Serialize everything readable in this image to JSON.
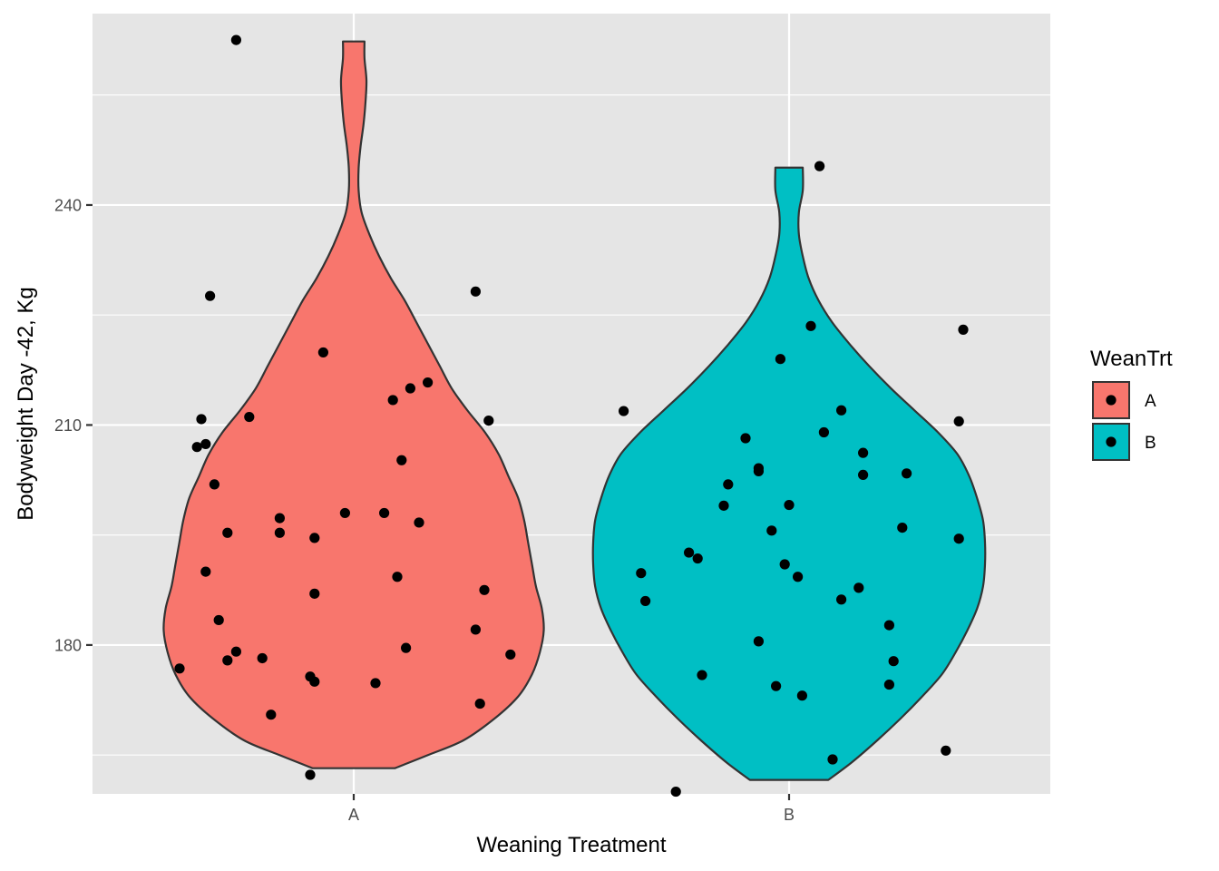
{
  "chart_data": {
    "type": "violin",
    "xlabel": "Weaning Treatment",
    "ylabel": "Bodyweight Day -42, Kg",
    "categories": [
      "A",
      "B"
    ],
    "ylim": [
      159.7,
      266.1
    ],
    "yticks": [
      180,
      210,
      240
    ],
    "grid": true,
    "legend": {
      "title": "WeanTrt",
      "position": "right",
      "entries": [
        {
          "label": "A",
          "color": "#F8766D"
        },
        {
          "label": "B",
          "color": "#00BFC4"
        }
      ]
    },
    "colors": {
      "A": "#F8766D",
      "B": "#00BFC4",
      "panel": "#E5E5E5",
      "grid": "#FFFFFF",
      "outline": "#333333",
      "point": "#000000"
    },
    "violins": [
      {
        "category": "A",
        "min": 163.2,
        "max": 262.3,
        "profile": [
          [
            163.2,
            0.21
          ],
          [
            165,
            0.38
          ],
          [
            167,
            0.56
          ],
          [
            170,
            0.72
          ],
          [
            173,
            0.84
          ],
          [
            176,
            0.91
          ],
          [
            179,
            0.95
          ],
          [
            182,
            0.97
          ],
          [
            185,
            0.96
          ],
          [
            188,
            0.93
          ],
          [
            191,
            0.91
          ],
          [
            194,
            0.89
          ],
          [
            197,
            0.87
          ],
          [
            200,
            0.84
          ],
          [
            203,
            0.79
          ],
          [
            206,
            0.74
          ],
          [
            209,
            0.67
          ],
          [
            212,
            0.58
          ],
          [
            215,
            0.5
          ],
          [
            218,
            0.44
          ],
          [
            221,
            0.38
          ],
          [
            224,
            0.32
          ],
          [
            227,
            0.26
          ],
          [
            230,
            0.19
          ],
          [
            233,
            0.13
          ],
          [
            236,
            0.08
          ],
          [
            239,
            0.04
          ],
          [
            242,
            0.025
          ],
          [
            245,
            0.025
          ],
          [
            248,
            0.035
          ],
          [
            251,
            0.05
          ],
          [
            254,
            0.06
          ],
          [
            257,
            0.065
          ],
          [
            260,
            0.055
          ],
          [
            262.3,
            0.055
          ]
        ]
      },
      {
        "category": "B",
        "min": 161.6,
        "max": 245.1,
        "profile": [
          [
            161.6,
            0.2
          ],
          [
            164,
            0.32
          ],
          [
            167,
            0.45
          ],
          [
            170,
            0.57
          ],
          [
            173,
            0.68
          ],
          [
            176,
            0.78
          ],
          [
            179,
            0.85
          ],
          [
            182,
            0.91
          ],
          [
            185,
            0.96
          ],
          [
            188,
            0.99
          ],
          [
            191,
            1.0
          ],
          [
            194,
            1.0
          ],
          [
            197,
            0.99
          ],
          [
            200,
            0.96
          ],
          [
            203,
            0.92
          ],
          [
            206,
            0.86
          ],
          [
            209,
            0.76
          ],
          [
            212,
            0.64
          ],
          [
            215,
            0.52
          ],
          [
            218,
            0.41
          ],
          [
            221,
            0.31
          ],
          [
            224,
            0.22
          ],
          [
            227,
            0.15
          ],
          [
            230,
            0.1
          ],
          [
            233,
            0.07
          ],
          [
            236,
            0.05
          ],
          [
            239,
            0.05
          ],
          [
            242,
            0.07
          ],
          [
            245.1,
            0.07
          ]
        ]
      }
    ],
    "points": {
      "A": [
        [
          -0.4,
          176.8
        ],
        [
          -0.27,
          262.5
        ],
        [
          -0.34,
          190.0
        ],
        [
          -0.36,
          207.0
        ],
        [
          -0.35,
          210.8
        ],
        [
          -0.34,
          207.4
        ],
        [
          -0.33,
          227.6
        ],
        [
          -0.32,
          201.9
        ],
        [
          -0.31,
          183.4
        ],
        [
          -0.29,
          195.3
        ],
        [
          -0.29,
          177.9
        ],
        [
          -0.27,
          179.1
        ],
        [
          -0.24,
          211.1
        ],
        [
          -0.21,
          178.2
        ],
        [
          -0.19,
          170.5
        ],
        [
          -0.17,
          197.3
        ],
        [
          -0.17,
          195.3
        ],
        [
          -0.1,
          175.7
        ],
        [
          -0.1,
          162.3
        ],
        [
          -0.09,
          194.6
        ],
        [
          -0.09,
          187.0
        ],
        [
          -0.09,
          175.0
        ],
        [
          -0.07,
          219.9
        ],
        [
          -0.02,
          198.0
        ],
        [
          0.05,
          174.8
        ],
        [
          0.07,
          198.0
        ],
        [
          0.09,
          213.4
        ],
        [
          0.1,
          189.3
        ],
        [
          0.11,
          205.2
        ],
        [
          0.12,
          179.6
        ],
        [
          0.13,
          215.0
        ],
        [
          0.15,
          196.7
        ],
        [
          0.17,
          215.8
        ],
        [
          0.28,
          228.2
        ],
        [
          0.28,
          182.1
        ],
        [
          0.29,
          172.0
        ],
        [
          0.3,
          187.5
        ],
        [
          0.31,
          210.6
        ],
        [
          0.36,
          178.7
        ]
      ],
      "B": [
        [
          -0.38,
          211.9
        ],
        [
          -0.34,
          189.8
        ],
        [
          -0.33,
          186.0
        ],
        [
          -0.26,
          160.0
        ],
        [
          -0.23,
          192.6
        ],
        [
          -0.21,
          191.8
        ],
        [
          -0.2,
          175.9
        ],
        [
          -0.15,
          199.0
        ],
        [
          -0.14,
          201.9
        ],
        [
          -0.1,
          208.2
        ],
        [
          -0.07,
          180.5
        ],
        [
          -0.07,
          203.7
        ],
        [
          -0.07,
          204.1
        ],
        [
          -0.04,
          195.6
        ],
        [
          -0.03,
          174.4
        ],
        [
          -0.02,
          219.0
        ],
        [
          -0.01,
          191.0
        ],
        [
          0.0,
          199.1
        ],
        [
          0.02,
          189.3
        ],
        [
          0.03,
          173.1
        ],
        [
          0.05,
          223.5
        ],
        [
          0.07,
          245.3
        ],
        [
          0.08,
          209.0
        ],
        [
          0.1,
          164.4
        ],
        [
          0.12,
          186.2
        ],
        [
          0.12,
          212.0
        ],
        [
          0.16,
          187.8
        ],
        [
          0.17,
          206.2
        ],
        [
          0.17,
          203.2
        ],
        [
          0.23,
          182.7
        ],
        [
          0.23,
          174.6
        ],
        [
          0.24,
          177.8
        ],
        [
          0.26,
          196.0
        ],
        [
          0.27,
          203.4
        ],
        [
          0.36,
          165.6
        ],
        [
          0.39,
          210.5
        ],
        [
          0.39,
          194.5
        ],
        [
          0.4,
          223.0
        ]
      ]
    }
  }
}
